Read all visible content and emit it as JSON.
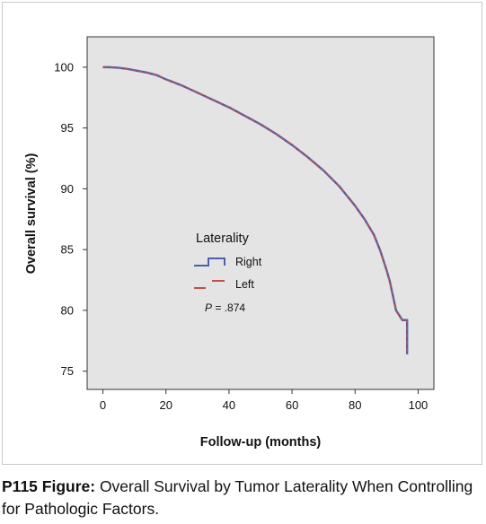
{
  "chart_data": {
    "type": "line",
    "xlabel": "Follow-up (months)",
    "ylabel": "Overall survival (%)",
    "xlim": [
      -5,
      105
    ],
    "ylim": [
      73.5,
      102.5
    ],
    "xticks": [
      0,
      20,
      40,
      60,
      80,
      100
    ],
    "yticks": [
      75,
      80,
      85,
      90,
      95,
      100
    ],
    "grid": false,
    "legend": {
      "title": "Laterality",
      "placement": "center-left",
      "entries": [
        "Right",
        "Left"
      ]
    },
    "annotation": {
      "p_label": "P",
      "p_value": " = .874"
    },
    "series": [
      {
        "name": "Right",
        "color": "#4a5fb0",
        "x": [
          0,
          2,
          5,
          8,
          11,
          14,
          17,
          20,
          25,
          30,
          35,
          40,
          45,
          50,
          55,
          60,
          65,
          70,
          75,
          80,
          83,
          86,
          88,
          90,
          91,
          92,
          93,
          94,
          94.5,
          95,
          95.5,
          96,
          96,
          96.5,
          96.5
        ],
        "y": [
          100,
          100,
          99.95,
          99.85,
          99.7,
          99.55,
          99.35,
          99.0,
          98.5,
          97.9,
          97.3,
          96.7,
          96.0,
          95.3,
          94.5,
          93.6,
          92.6,
          91.5,
          90.2,
          88.6,
          87.5,
          86.2,
          84.9,
          83.3,
          82.4,
          81.2,
          80.0,
          79.6,
          79.4,
          79.2,
          79.2,
          79.2,
          79.2,
          79.2,
          76.4
        ]
      },
      {
        "name": "Left",
        "color": "#c0504d",
        "x": [
          0,
          2,
          5,
          8,
          11,
          14,
          17,
          20,
          25,
          30,
          35,
          40,
          45,
          50,
          55,
          60,
          65,
          70,
          75,
          80,
          83,
          86,
          88,
          90,
          91,
          92,
          93,
          94,
          94.5,
          95,
          95.5,
          96,
          96,
          96.5,
          96.5
        ],
        "y": [
          100,
          100,
          99.95,
          99.85,
          99.7,
          99.55,
          99.35,
          99.0,
          98.5,
          97.9,
          97.3,
          96.7,
          96.0,
          95.3,
          94.5,
          93.6,
          92.6,
          91.5,
          90.2,
          88.6,
          87.5,
          86.2,
          84.9,
          83.3,
          82.4,
          81.2,
          80.0,
          79.6,
          79.4,
          79.2,
          79.2,
          79.2,
          79.2,
          79.2,
          76.4
        ]
      }
    ]
  },
  "caption": {
    "label": "P115 Figure:",
    "text": " Overall Survival by Tumor Laterality When Controlling for Pathologic Factors."
  }
}
